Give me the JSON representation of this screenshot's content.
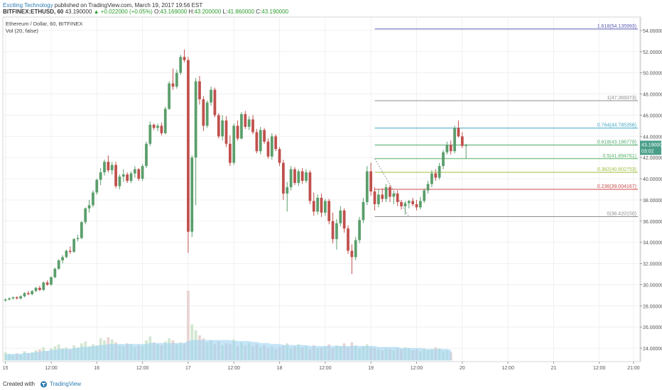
{
  "header": {
    "publisher": "Exciting Technology",
    "published_text": " published on TradingView.com, March 19, 2017 19:56 EST",
    "symbol": "BITFINEX:ETHUSD, 60",
    "last": "43.190000",
    "change": "▲ +0.022000 (+0.05%)",
    "o_label": "O:",
    "o_val": "43.169000",
    "h_label": "H:",
    "h_val": "43.200000",
    "l_label": "L:",
    "l_val": "41.860000",
    "c_label": "C:",
    "c_val": "43.190000"
  },
  "legend": {
    "title": "Ethereum / Dollar, 60, BITFINEX",
    "volume": "Vol (20, false)"
  },
  "footer": {
    "created_with": "Created with",
    "brand": "TradingView"
  },
  "chart_data": {
    "type": "candlestick",
    "title": "Ethereum / Dollar, 60, BITFINEX",
    "ylim": [
      22.8,
      55.2
    ],
    "yticks": [
      24,
      26,
      28,
      30,
      32,
      34,
      36,
      38,
      40,
      42,
      44,
      46,
      48,
      50,
      52,
      54
    ],
    "ytick_labels": [
      "24.000000",
      "26.000000",
      "28.000000",
      "30.000000",
      "32.000000",
      "34.000000",
      "36.000000",
      "38.000000",
      "40.000000",
      "42.000000",
      "44.000000",
      "46.000000",
      "48.000000",
      "50.000000",
      "52.000000",
      "54.000000"
    ],
    "xticks": [
      {
        "label": "15",
        "pos": 0.0
      },
      {
        "label": "12:00",
        "pos": 12.0
      },
      {
        "label": "16",
        "pos": 24.0
      },
      {
        "label": "12:00",
        "pos": 36.0
      },
      {
        "label": "17",
        "pos": 48.0
      },
      {
        "label": "12:00",
        "pos": 60.0
      },
      {
        "label": "18",
        "pos": 72.0
      },
      {
        "label": "12:00",
        "pos": 84.0
      },
      {
        "label": "19",
        "pos": 96.0
      },
      {
        "label": "12:00",
        "pos": 108.0
      },
      {
        "label": "20",
        "pos": 120.0
      },
      {
        "label": "12:00",
        "pos": 132.0
      },
      {
        "label": "21",
        "pos": 144.0
      },
      {
        "label": "12:00",
        "pos": 156.0
      },
      {
        "label": "21:00",
        "pos": 165.0
      }
    ],
    "x_start": -0.5,
    "x_end": 166.5,
    "colors": {
      "up": "#5b9e6b",
      "down": "#c0504d",
      "volume_up": "#c7e1c7",
      "volume_down": "#e3c9c9",
      "vol_ma": "#9fd4f2"
    },
    "candles": [
      [
        28.5,
        28.7,
        28.4,
        28.6
      ],
      [
        28.6,
        28.8,
        28.5,
        28.7
      ],
      [
        28.7,
        28.9,
        28.6,
        28.8
      ],
      [
        28.8,
        28.9,
        28.6,
        28.7
      ],
      [
        28.7,
        29.0,
        28.6,
        28.9
      ],
      [
        28.9,
        29.3,
        28.8,
        29.2
      ],
      [
        29.2,
        29.4,
        29.0,
        29.1
      ],
      [
        29.1,
        29.5,
        29.0,
        29.4
      ],
      [
        29.4,
        29.8,
        29.3,
        29.7
      ],
      [
        29.7,
        29.9,
        29.4,
        29.5
      ],
      [
        29.5,
        30.3,
        29.4,
        30.2
      ],
      [
        30.2,
        30.4,
        29.9,
        30.0
      ],
      [
        30.0,
        30.8,
        29.9,
        30.7
      ],
      [
        30.7,
        31.6,
        30.6,
        31.5
      ],
      [
        31.5,
        32.4,
        31.4,
        32.3
      ],
      [
        32.3,
        32.8,
        32.0,
        32.6
      ],
      [
        32.6,
        33.3,
        32.5,
        33.2
      ],
      [
        33.2,
        33.6,
        32.9,
        33.1
      ],
      [
        33.1,
        34.4,
        33.0,
        34.3
      ],
      [
        34.3,
        34.7,
        34.1,
        34.4
      ],
      [
        34.4,
        36.0,
        34.3,
        35.9
      ],
      [
        35.9,
        37.3,
        35.7,
        37.2
      ],
      [
        37.2,
        38.0,
        36.8,
        37.5
      ],
      [
        37.5,
        38.9,
        37.3,
        38.7
      ],
      [
        38.7,
        40.0,
        38.5,
        39.9
      ],
      [
        39.9,
        41.0,
        39.4,
        40.6
      ],
      [
        40.6,
        41.8,
        40.3,
        41.6
      ],
      [
        41.6,
        42.2,
        40.6,
        40.8
      ],
      [
        40.8,
        41.6,
        40.4,
        41.3
      ],
      [
        41.3,
        41.6,
        39.1,
        39.3
      ],
      [
        39.3,
        40.4,
        39.0,
        40.2
      ],
      [
        40.2,
        40.9,
        39.7,
        40.4
      ],
      [
        40.4,
        40.6,
        39.6,
        39.8
      ],
      [
        39.8,
        40.7,
        39.6,
        40.5
      ],
      [
        40.5,
        41.2,
        40.1,
        40.9
      ],
      [
        40.9,
        41.0,
        39.8,
        40.0
      ],
      [
        40.0,
        41.4,
        39.8,
        41.2
      ],
      [
        41.2,
        43.5,
        41.0,
        43.3
      ],
      [
        43.3,
        45.4,
        43.1,
        45.1
      ],
      [
        45.1,
        45.2,
        44.6,
        44.8
      ],
      [
        44.8,
        45.2,
        44.5,
        45.0
      ],
      [
        45.0,
        45.3,
        44.1,
        44.3
      ],
      [
        44.3,
        46.8,
        44.2,
        46.6
      ],
      [
        46.6,
        49.2,
        46.5,
        49.0
      ],
      [
        49.0,
        50.4,
        48.4,
        48.7
      ],
      [
        48.7,
        50.3,
        48.5,
        50.0
      ],
      [
        50.0,
        51.7,
        49.8,
        51.5
      ],
      [
        51.5,
        52.2,
        51.0,
        51.2
      ],
      [
        51.2,
        51.5,
        33.0,
        35.0
      ],
      [
        35.0,
        42.2,
        34.5,
        42.0
      ],
      [
        42.0,
        49.5,
        37.5,
        49.2
      ],
      [
        49.2,
        49.7,
        47.0,
        47.5
      ],
      [
        47.5,
        47.8,
        44.5,
        45.0
      ],
      [
        45.0,
        47.4,
        44.8,
        47.2
      ],
      [
        47.2,
        48.7,
        46.9,
        48.4
      ],
      [
        48.4,
        48.6,
        45.8,
        46.0
      ],
      [
        46.0,
        46.2,
        43.8,
        44.0
      ],
      [
        44.0,
        46.0,
        43.6,
        45.5
      ],
      [
        45.5,
        45.9,
        43.0,
        43.3
      ],
      [
        43.3,
        44.1,
        41.2,
        41.5
      ],
      [
        41.5,
        45.2,
        41.3,
        45.0
      ],
      [
        45.0,
        45.5,
        43.6,
        43.8
      ],
      [
        43.8,
        46.3,
        43.7,
        46.1
      ],
      [
        46.1,
        46.4,
        44.7,
        44.9
      ],
      [
        44.9,
        45.9,
        44.6,
        45.6
      ],
      [
        45.6,
        46.0,
        44.2,
        44.4
      ],
      [
        44.4,
        44.7,
        42.4,
        42.6
      ],
      [
        42.6,
        44.9,
        42.3,
        44.6
      ],
      [
        44.6,
        44.8,
        43.3,
        43.5
      ],
      [
        43.5,
        43.8,
        41.9,
        42.1
      ],
      [
        42.1,
        44.3,
        41.8,
        44.0
      ],
      [
        44.0,
        44.2,
        42.6,
        42.8
      ],
      [
        42.8,
        43.0,
        41.2,
        41.5
      ],
      [
        41.5,
        41.8,
        38.0,
        38.6
      ],
      [
        38.6,
        39.7,
        36.9,
        39.2
      ],
      [
        39.2,
        41.2,
        38.9,
        40.9
      ],
      [
        40.9,
        41.1,
        39.4,
        39.6
      ],
      [
        39.6,
        40.9,
        39.3,
        40.7
      ],
      [
        40.7,
        41.0,
        39.5,
        39.8
      ],
      [
        39.8,
        40.9,
        39.6,
        40.6
      ],
      [
        40.6,
        40.8,
        37.6,
        37.9
      ],
      [
        37.9,
        38.7,
        36.5,
        36.9
      ],
      [
        36.9,
        38.5,
        36.6,
        38.2
      ],
      [
        38.2,
        38.6,
        36.4,
        36.8
      ],
      [
        36.8,
        38.1,
        36.5,
        37.9
      ],
      [
        37.9,
        38.1,
        35.7,
        36.0
      ],
      [
        36.0,
        36.8,
        33.9,
        34.3
      ],
      [
        34.3,
        36.2,
        33.3,
        35.8
      ],
      [
        35.8,
        37.4,
        35.5,
        37.0
      ],
      [
        37.0,
        37.2,
        34.9,
        35.3
      ],
      [
        35.3,
        35.6,
        32.9,
        33.2
      ],
      [
        33.2,
        33.8,
        31.0,
        32.6
      ],
      [
        32.6,
        34.5,
        32.3,
        34.2
      ],
      [
        34.2,
        36.4,
        33.9,
        36.1
      ],
      [
        36.1,
        38.2,
        35.8,
        37.8
      ],
      [
        37.8,
        41.2,
        37.5,
        40.7
      ],
      [
        40.7,
        41.5,
        38.4,
        38.8
      ],
      [
        38.8,
        39.2,
        37.0,
        37.6
      ],
      [
        37.6,
        39.0,
        37.3,
        38.5
      ],
      [
        38.5,
        39.1,
        37.8,
        38.1
      ],
      [
        38.1,
        39.5,
        37.8,
        39.2
      ],
      [
        39.2,
        39.4,
        37.8,
        38.3
      ],
      [
        38.3,
        38.8,
        37.6,
        38.6
      ],
      [
        38.6,
        38.9,
        37.4,
        37.8
      ],
      [
        37.8,
        38.0,
        37.1,
        37.4
      ],
      [
        37.4,
        37.9,
        36.6,
        37.7
      ],
      [
        37.7,
        38.0,
        37.2,
        37.9
      ],
      [
        37.9,
        38.2,
        37.4,
        37.6
      ],
      [
        37.6,
        38.0,
        37.0,
        37.3
      ],
      [
        37.3,
        38.3,
        37.1,
        37.9
      ],
      [
        37.9,
        39.1,
        37.7,
        38.9
      ],
      [
        38.9,
        39.8,
        38.6,
        39.5
      ],
      [
        39.5,
        40.8,
        39.2,
        40.5
      ],
      [
        40.5,
        40.9,
        39.8,
        40.1
      ],
      [
        40.1,
        41.5,
        39.9,
        41.2
      ],
      [
        41.2,
        42.7,
        40.9,
        42.5
      ],
      [
        42.5,
        43.5,
        42.3,
        43.2
      ],
      [
        43.2,
        43.6,
        42.3,
        42.6
      ],
      [
        42.6,
        45.0,
        42.4,
        44.8
      ],
      [
        44.8,
        45.5,
        43.9,
        44.0
      ],
      [
        44.0,
        44.4,
        42.9,
        43.1
      ],
      [
        43.1,
        43.3,
        41.9,
        43.2
      ]
    ],
    "volumes": [
      8,
      6,
      5,
      7,
      6,
      9,
      7,
      8,
      10,
      11,
      13,
      9,
      12,
      14,
      16,
      12,
      13,
      11,
      15,
      13,
      17,
      19,
      14,
      16,
      15,
      22,
      20,
      23,
      21,
      18,
      15,
      14,
      17,
      16,
      13,
      15,
      14,
      20,
      24,
      18,
      16,
      15,
      19,
      22,
      20,
      16,
      18,
      17,
      70,
      36,
      30,
      25,
      22,
      18,
      20,
      16,
      19,
      15,
      17,
      16,
      21,
      14,
      18,
      15,
      17,
      14,
      16,
      13,
      15,
      12,
      14,
      11,
      13,
      15,
      17,
      12,
      14,
      16,
      13,
      14,
      11,
      15,
      12,
      13,
      14,
      16,
      12,
      15,
      14,
      17,
      13,
      18,
      15,
      12,
      14,
      16,
      13,
      12,
      11,
      10,
      12,
      11,
      10,
      12,
      11,
      13,
      12,
      10,
      11,
      9,
      12,
      10,
      11,
      13,
      12,
      9,
      10,
      8
    ],
    "vol_ma": [
      6,
      6,
      6,
      6,
      6,
      7,
      7,
      7,
      8,
      8,
      9,
      9,
      10,
      10,
      11,
      11,
      11,
      11,
      12,
      12,
      13,
      13,
      13,
      14,
      14,
      15,
      15,
      16,
      16,
      16,
      16,
      16,
      16,
      16,
      16,
      16,
      16,
      16,
      17,
      17,
      17,
      17,
      17,
      17,
      17,
      17,
      17,
      17,
      19,
      20,
      20,
      20,
      20,
      20,
      20,
      20,
      20,
      20,
      20,
      20,
      19,
      19,
      19,
      19,
      19,
      18,
      18,
      17,
      17,
      17,
      16,
      16,
      16,
      15,
      15,
      15,
      15,
      15,
      15,
      15,
      14,
      14,
      14,
      14,
      14,
      14,
      14,
      14,
      14,
      14,
      14,
      14,
      14,
      14,
      14,
      14,
      14,
      14,
      13,
      13,
      13,
      13,
      13,
      13,
      12,
      12,
      12,
      12,
      12,
      12,
      11,
      11,
      11,
      11,
      11,
      11,
      11,
      10
    ],
    "fibonacci": [
      {
        "label": "1.618(54.135993)",
        "level": 54.135993,
        "color": "#5b5bb5"
      },
      {
        "label": "1(47.369373)",
        "level": 47.369373,
        "color": "#8c8c8c"
      },
      {
        "label": "0.764(44.785356)",
        "level": 44.785356,
        "color": "#3fa7c4"
      },
      {
        "label": "0.618(43.186770)",
        "level": 43.18677,
        "color": "#4caa6a"
      },
      {
        "label": "0.5(41.894761)",
        "level": 41.894761,
        "color": "#5bb565"
      },
      {
        "label": "0.382(40.602753)",
        "level": 40.602753,
        "color": "#9cbf3a"
      },
      {
        "label": "0.236(39.004167)",
        "level": 39.004167,
        "color": "#cc4a4a"
      },
      {
        "label": "0(36.420150)",
        "level": 36.42015,
        "color": "#8c8c8c"
      }
    ],
    "fib_x_start": 97,
    "fib_x_end": 175,
    "trend_line": [
      [
        97,
        41.9
      ],
      [
        106,
        36.4
      ]
    ],
    "last_price": {
      "label": "43.190000",
      "countdown": "03:02",
      "value": 43.19,
      "color": "#4a9e8a"
    }
  }
}
